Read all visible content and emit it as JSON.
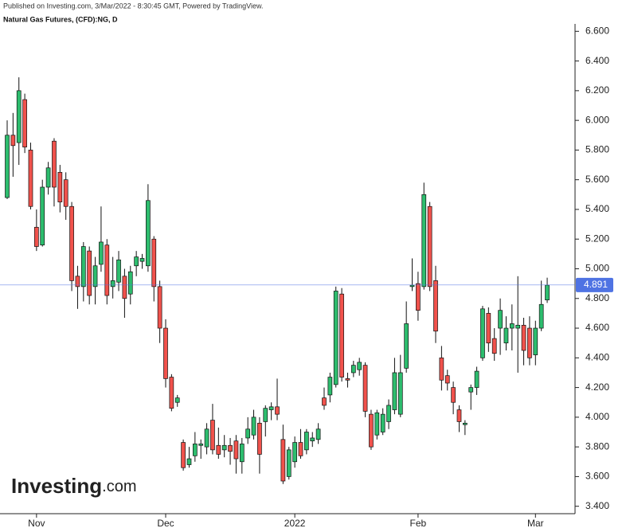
{
  "header": {
    "published": "Published on Investing.com, 3/Mar/2022 - 8:30:45 GMT, Powered by TradingView.",
    "instrument": "Natural Gas Futures, (CFD):NG, D"
  },
  "logo": {
    "brand": "Investing",
    "suffix": ".com"
  },
  "chart_data": {
    "type": "candlestick",
    "categories": [
      null,
      null,
      null,
      null,
      null,
      "Nov",
      null,
      null,
      null,
      null,
      null,
      null,
      null,
      null,
      null,
      null,
      null,
      null,
      null,
      null,
      null,
      null,
      null,
      null,
      null,
      null,
      null,
      "Dec",
      null,
      null,
      null,
      null,
      null,
      null,
      null,
      null,
      null,
      null,
      null,
      null,
      null,
      null,
      null,
      null,
      null,
      null,
      null,
      null,
      null,
      "2022",
      null,
      null,
      null,
      null,
      null,
      null,
      null,
      null,
      null,
      null,
      null,
      null,
      null,
      null,
      null,
      null,
      null,
      null,
      null,
      null,
      "Feb",
      null,
      null,
      null,
      null,
      null,
      null,
      null,
      null,
      null,
      null,
      null,
      null,
      null,
      null,
      null,
      null,
      null,
      null,
      null,
      "Mar",
      null,
      null
    ],
    "open": [
      5.48,
      5.9,
      5.85,
      6.14,
      5.8,
      5.28,
      5.16,
      5.55,
      5.86,
      5.65,
      5.6,
      5.42,
      4.95,
      4.88,
      5.12,
      4.88,
      5.03,
      5.16,
      4.88,
      4.91,
      4.95,
      4.83,
      5.02,
      5.05,
      5.02,
      5.2,
      4.88,
      4.6,
      4.27,
      4.1,
      3.83,
      3.68,
      3.74,
      3.81,
      3.8,
      3.98,
      3.81,
      3.78,
      3.81,
      3.84,
      3.7,
      3.86,
      3.88,
      3.96,
      3.97,
      4.05,
      4.07,
      3.85,
      3.6,
      3.7,
      3.83,
      3.78,
      3.84,
      3.85,
      4.13,
      4.15,
      4.22,
      4.83,
      4.26,
      4.3,
      4.32,
      4.35,
      4.02,
      3.88,
      3.9,
      3.97,
      4.05,
      4.02,
      4.33,
      4.88,
      4.9,
      4.88,
      5.42,
      4.92,
      4.4,
      4.28,
      4.2,
      4.05,
      3.95,
      4.17,
      4.2,
      4.4,
      4.7,
      4.53,
      4.6,
      4.5,
      4.6,
      4.6,
      4.62,
      4.6,
      4.42,
      4.6,
      4.79
    ],
    "high": [
      6.0,
      6.05,
      6.29,
      6.18,
      5.85,
      5.4,
      5.6,
      5.72,
      5.88,
      5.7,
      5.65,
      5.45,
      5.02,
      5.18,
      5.15,
      5.08,
      5.42,
      5.2,
      5.08,
      5.12,
      5.0,
      5.02,
      5.12,
      5.1,
      5.57,
      5.22,
      4.92,
      4.66,
      4.29,
      4.15,
      3.85,
      3.8,
      3.9,
      3.85,
      3.96,
      4.09,
      3.93,
      3.88,
      3.86,
      3.88,
      3.86,
      4.0,
      4.05,
      4.0,
      4.08,
      4.1,
      4.26,
      3.95,
      3.8,
      3.87,
      3.92,
      3.92,
      3.9,
      3.96,
      4.2,
      4.3,
      4.88,
      4.87,
      4.3,
      4.38,
      4.4,
      4.37,
      4.05,
      4.05,
      4.06,
      4.12,
      4.4,
      4.42,
      4.78,
      5.07,
      4.98,
      5.58,
      5.45,
      5.02,
      4.48,
      4.32,
      4.24,
      4.08,
      3.98,
      4.22,
      4.34,
      4.75,
      4.74,
      4.6,
      4.8,
      4.68,
      4.76,
      4.95,
      4.67,
      4.68,
      4.65,
      4.92,
      4.94
    ],
    "low": [
      5.47,
      5.62,
      5.7,
      5.78,
      5.4,
      5.12,
      5.15,
      5.5,
      5.42,
      5.38,
      5.33,
      4.85,
      4.73,
      4.78,
      4.76,
      4.76,
      4.98,
      4.76,
      4.8,
      4.85,
      4.67,
      4.76,
      4.95,
      5.0,
      4.98,
      4.78,
      4.5,
      4.2,
      4.04,
      4.07,
      3.64,
      3.66,
      3.7,
      3.72,
      3.75,
      3.75,
      3.72,
      3.73,
      3.68,
      3.62,
      3.62,
      3.82,
      3.85,
      3.62,
      3.87,
      3.98,
      3.98,
      3.55,
      3.58,
      3.66,
      3.72,
      3.75,
      3.8,
      3.82,
      4.05,
      4.1,
      4.2,
      4.24,
      4.2,
      4.27,
      4.28,
      4.0,
      3.78,
      3.85,
      3.88,
      3.92,
      4.02,
      4.0,
      4.3,
      4.85,
      4.65,
      4.86,
      4.85,
      4.5,
      4.18,
      4.18,
      4.02,
      3.9,
      3.88,
      4.05,
      4.15,
      4.38,
      4.44,
      4.38,
      4.42,
      4.45,
      4.45,
      4.3,
      4.35,
      4.35,
      4.35,
      4.58,
      4.77
    ],
    "close": [
      5.9,
      5.83,
      6.2,
      5.82,
      5.42,
      5.15,
      5.55,
      5.68,
      5.55,
      5.45,
      5.42,
      4.92,
      4.88,
      5.15,
      4.82,
      5.02,
      5.18,
      4.82,
      4.92,
      5.06,
      4.8,
      4.98,
      5.08,
      5.07,
      5.46,
      4.88,
      4.6,
      4.26,
      4.06,
      4.13,
      3.66,
      3.72,
      3.82,
      3.82,
      3.92,
      3.78,
      3.75,
      3.81,
      3.77,
      3.72,
      3.82,
      3.92,
      4.0,
      3.75,
      4.06,
      4.07,
      4.02,
      3.57,
      3.78,
      3.83,
      3.74,
      3.9,
      3.86,
      3.92,
      4.08,
      4.27,
      4.85,
      4.27,
      4.25,
      4.35,
      4.37,
      4.04,
      3.8,
      4.03,
      4.02,
      4.08,
      4.3,
      4.3,
      4.63,
      4.89,
      4.72,
      5.5,
      4.88,
      4.58,
      4.25,
      4.23,
      4.1,
      3.97,
      3.96,
      4.2,
      4.31,
      4.73,
      4.5,
      4.43,
      4.72,
      4.6,
      4.63,
      4.62,
      4.45,
      4.4,
      4.6,
      4.76,
      4.89
    ],
    "up_color": "#2dbd6e",
    "down_color": "#f0524c",
    "wick_color": "#111111",
    "last_value": 4.891,
    "last_color": "#4f73e3",
    "ylim": [
      3.35,
      6.65
    ],
    "yticks": [
      {
        "value": 3.4,
        "label": "3.400"
      },
      {
        "value": 3.6,
        "label": "3.600"
      },
      {
        "value": 3.8,
        "label": "3.800"
      },
      {
        "value": 4.0,
        "label": "4.000"
      },
      {
        "value": 4.2,
        "label": "4.200"
      },
      {
        "value": 4.4,
        "label": "4.400"
      },
      {
        "value": 4.6,
        "label": "4.600"
      },
      {
        "value": 4.8,
        "label": "4.800"
      },
      {
        "value": 5.0,
        "label": "5.000"
      },
      {
        "value": 5.2,
        "label": "5.200"
      },
      {
        "value": 5.4,
        "label": "5.400"
      },
      {
        "value": 5.6,
        "label": "5.600"
      },
      {
        "value": 5.8,
        "label": "5.800"
      },
      {
        "value": 6.0,
        "label": "6.000"
      },
      {
        "value": 6.2,
        "label": "6.200"
      },
      {
        "value": 6.4,
        "label": "6.400"
      },
      {
        "value": 6.6,
        "label": "6.600"
      }
    ]
  }
}
